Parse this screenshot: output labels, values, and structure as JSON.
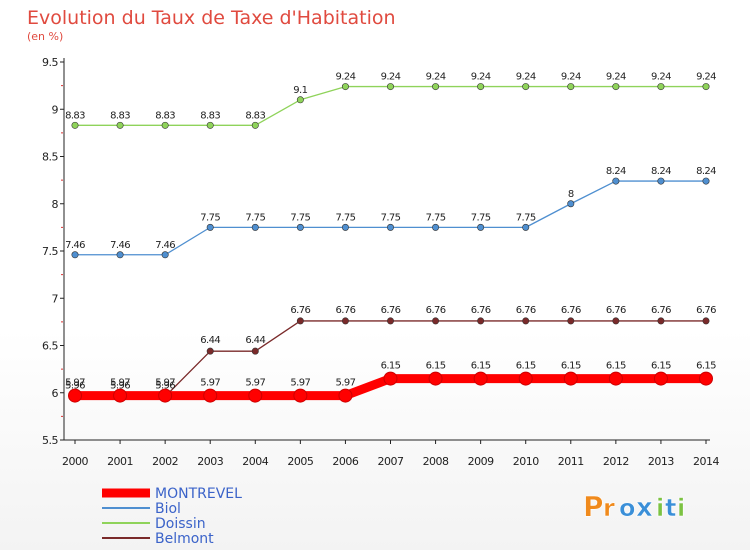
{
  "chart_data": {
    "type": "line",
    "title": "Evolution du Taux de Taxe d'Habitation",
    "subtitle": "(en %)",
    "xlabel": "",
    "ylabel": "",
    "x": [
      "2000",
      "2001",
      "2002",
      "2003",
      "2004",
      "2005",
      "2006",
      "2007",
      "2008",
      "2009",
      "2010",
      "2011",
      "2012",
      "2013",
      "2014"
    ],
    "ylim": [
      5.5,
      9.5
    ],
    "yticks": [
      "5.5",
      "6",
      "6.5",
      "7",
      "7.5",
      "8",
      "8.5",
      "9",
      "9.5"
    ],
    "grid": false,
    "legend_position": "bottom-left",
    "series": [
      {
        "name": "MONTREVEL",
        "color": "#ff0000",
        "values": [
          5.97,
          5.97,
          5.97,
          5.97,
          5.97,
          5.97,
          5.97,
          6.15,
          6.15,
          6.15,
          6.15,
          6.15,
          6.15,
          6.15,
          6.15
        ],
        "labels": [
          "5.97",
          "5.97",
          "5.97",
          "5.97",
          "5.97",
          "5.97",
          "5.97",
          "6.15",
          "6.15",
          "6.15",
          "6.15",
          "6.15",
          "6.15",
          "6.15",
          "6.15"
        ]
      },
      {
        "name": "Biol",
        "color": "#4f8fd0",
        "values": [
          7.46,
          7.46,
          7.46,
          7.75,
          7.75,
          7.75,
          7.75,
          7.75,
          7.75,
          7.75,
          7.75,
          8,
          8.24,
          8.24,
          8.24
        ],
        "labels": [
          "7.46",
          "7.46",
          "7.46",
          "7.75",
          "7.75",
          "7.75",
          "7.75",
          "7.75",
          "7.75",
          "7.75",
          "7.75",
          "8",
          "8.24",
          "8.24",
          "8.24"
        ]
      },
      {
        "name": "Doissin",
        "color": "#8fd35a",
        "values": [
          8.83,
          8.83,
          8.83,
          8.83,
          8.83,
          9.1,
          9.24,
          9.24,
          9.24,
          9.24,
          9.24,
          9.24,
          9.24,
          9.24,
          9.24
        ],
        "labels": [
          "8.83",
          "8.83",
          "8.83",
          "8.83",
          "8.83",
          "9.1",
          "9.24",
          "9.24",
          "9.24",
          "9.24",
          "9.24",
          "9.24",
          "9.24",
          "9.24",
          "9.24"
        ]
      },
      {
        "name": "Belmont",
        "color": "#7a2a2a",
        "values": [
          5.96,
          5.96,
          5.96,
          6.44,
          6.44,
          6.76,
          6.76,
          6.76,
          6.76,
          6.76,
          6.76,
          6.76,
          6.76,
          6.76,
          6.76
        ],
        "labels": [
          "5.96",
          "5.96",
          "5.96",
          "6.44",
          "6.44",
          "6.76",
          "6.76",
          "6.76",
          "6.76",
          "6.76",
          "6.76",
          "6.76",
          "6.76",
          "6.76",
          "6.76"
        ]
      }
    ]
  },
  "logo": {
    "text": "Proxiti",
    "letters": [
      "P",
      "r",
      "o",
      "x",
      "i",
      "t",
      "i"
    ],
    "colors": [
      "#f08a1c",
      "#f08a1c",
      "#3a8fd8",
      "#3a8fd8",
      "#7cc242",
      "#3a8fd8",
      "#7cc242"
    ]
  }
}
